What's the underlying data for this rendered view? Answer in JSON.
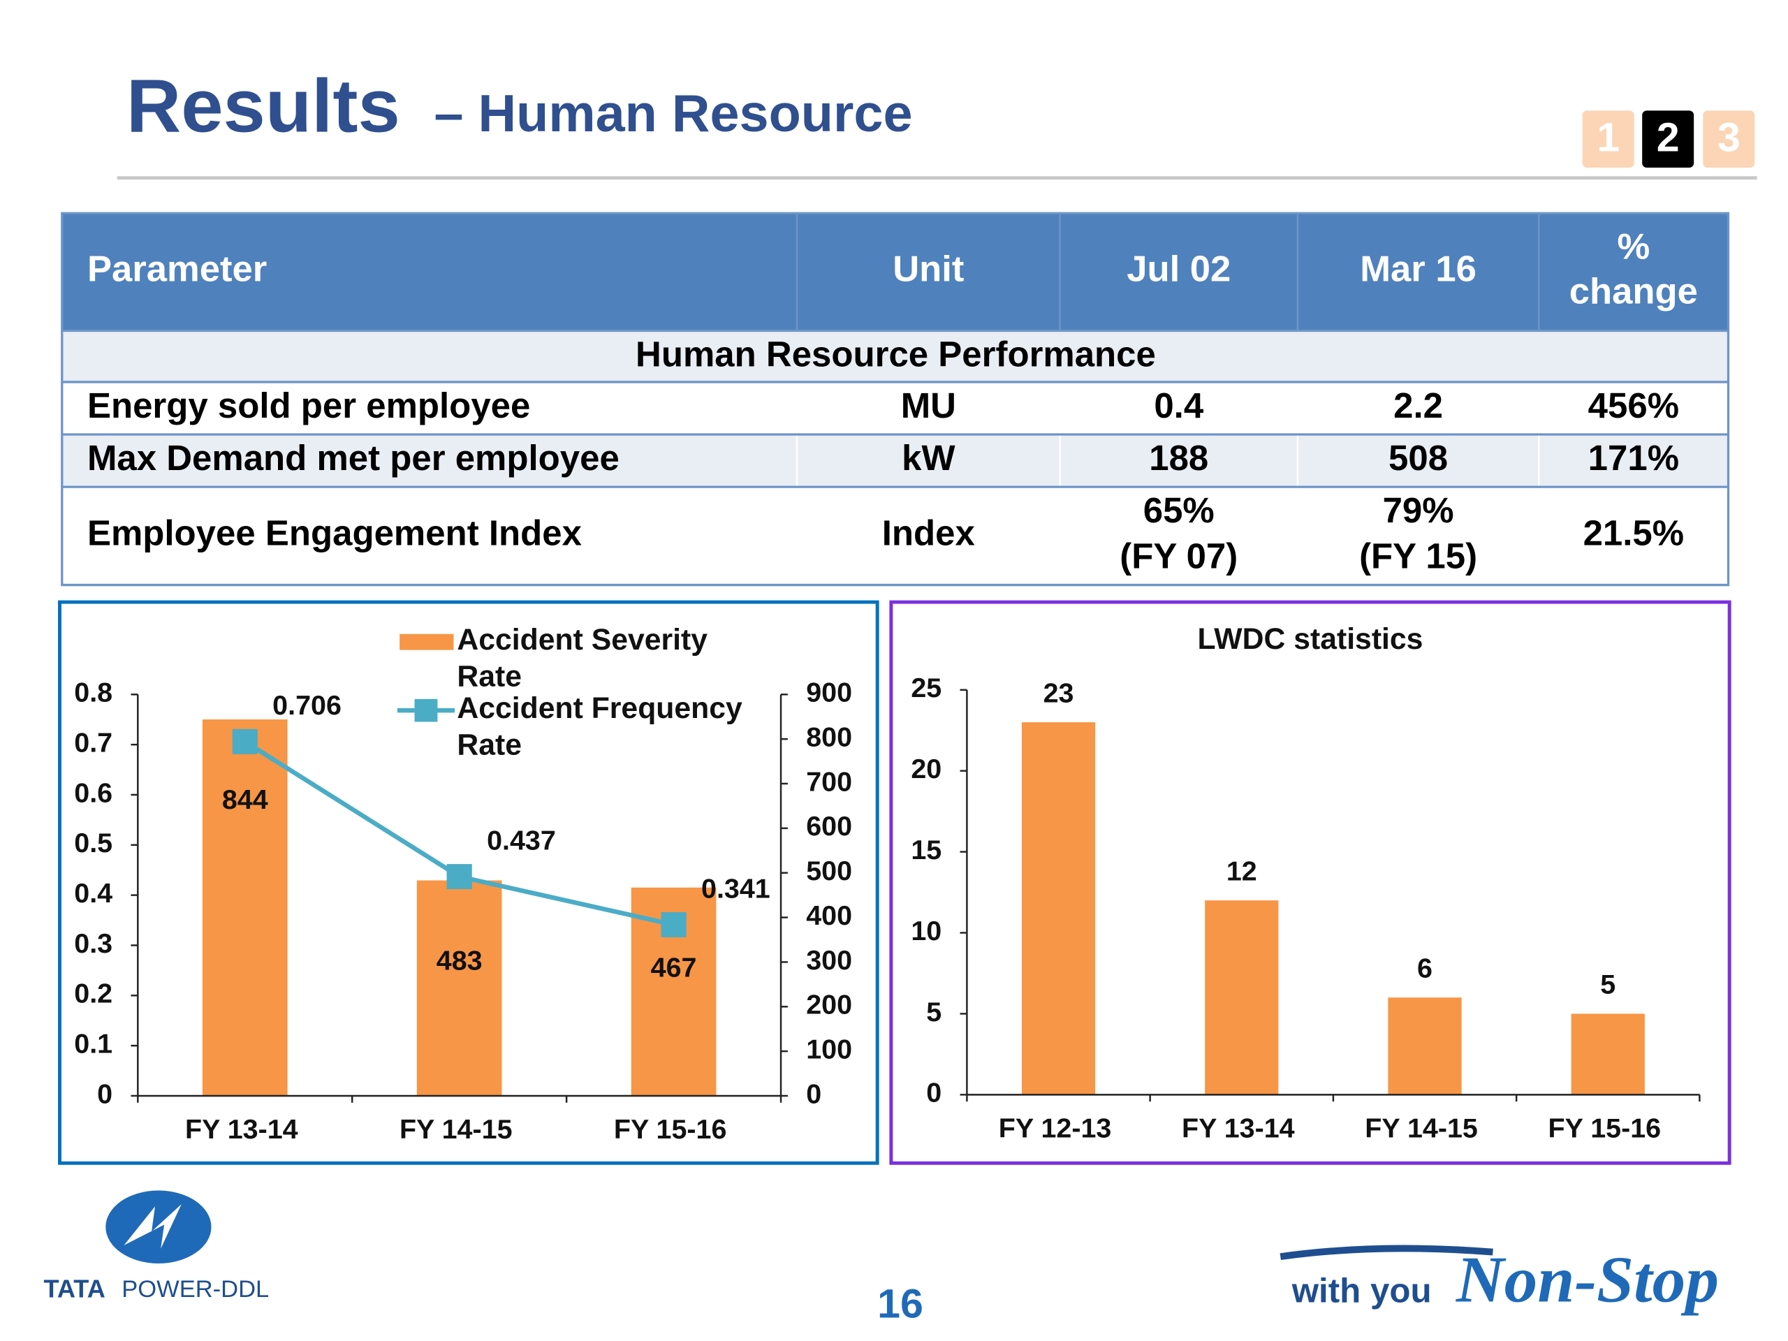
{
  "header": {
    "title": "Results",
    "subtitle": "– Human Resource",
    "nav": [
      "1",
      "2",
      "3"
    ]
  },
  "table": {
    "header": [
      "Parameter",
      "Unit",
      "Jul 02",
      "Mar 16",
      "% change"
    ],
    "section": "Human Resource Performance",
    "rows": [
      [
        "Energy sold per employee",
        "MU",
        "0.4",
        "2.2",
        "456%"
      ],
      [
        "Max Demand met per employee",
        "kW",
        "188",
        "508",
        "171%"
      ],
      [
        "Employee Engagement Index",
        "Index",
        [
          "65%",
          "(FY 07)"
        ],
        [
          "79%",
          "(FY 15)"
        ],
        "21.5%"
      ]
    ]
  },
  "chart_data": [
    {
      "type": "combo",
      "categories": [
        "FY 13-14",
        "FY 14-15",
        "FY 15-16"
      ],
      "series": [
        {
          "name": "Accident Severity Rate",
          "type": "bar",
          "axis": "y2",
          "color": "#f79646",
          "values": [
            844,
            483,
            467
          ]
        },
        {
          "name": "Accident Frequency Rate",
          "type": "line",
          "color": "#4bacc6",
          "values": [
            0.706,
            0.437,
            0.341
          ]
        }
      ],
      "ylim": [
        0,
        0.8
      ],
      "yticks": [
        0,
        0.1,
        0.2,
        0.3,
        0.4,
        0.5,
        0.6,
        0.7,
        0.8
      ],
      "y2lim": [
        0,
        900
      ],
      "y2ticks": [
        0,
        100,
        200,
        300,
        400,
        500,
        600,
        700,
        800,
        900
      ]
    },
    {
      "type": "bar",
      "title": "LWDC statistics",
      "categories": [
        "FY 12-13",
        "FY 13-14",
        "FY 14-15",
        "FY 15-16"
      ],
      "values": [
        23,
        12,
        6,
        5
      ],
      "color": "#f79646",
      "ylim": [
        0,
        25
      ],
      "yticks": [
        0,
        5,
        10,
        15,
        20,
        25
      ]
    }
  ],
  "footer": {
    "logo_brand": "TATA",
    "logo_name": "POWER-DDL",
    "page": "16",
    "tagline": "with you",
    "slogan": "Non-Stop"
  }
}
